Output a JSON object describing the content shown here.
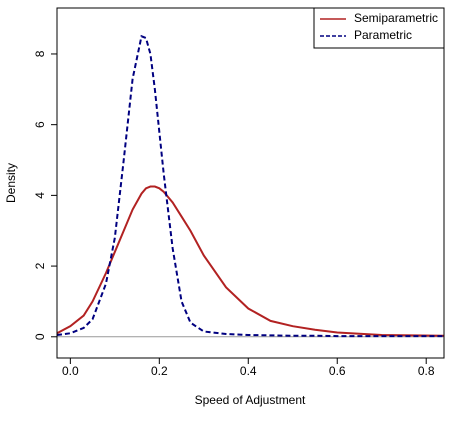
{
  "chart_data": {
    "type": "line",
    "xlabel": "Speed of Adjustment",
    "ylabel": "Density",
    "x": [
      -0.03,
      0,
      0.03,
      0.05,
      0.08,
      0.1,
      0.12,
      0.14,
      0.16,
      0.17,
      0.18,
      0.19,
      0.2,
      0.21,
      0.23,
      0.25,
      0.27,
      0.3,
      0.35,
      0.4,
      0.45,
      0.5,
      0.55,
      0.6,
      0.7,
      0.84
    ],
    "series": [
      {
        "name": "Semiparametric",
        "color": "#b22222",
        "linestyle": "solid",
        "values": [
          0.1,
          0.3,
          0.6,
          1.0,
          1.8,
          2.4,
          3.0,
          3.6,
          4.05,
          4.2,
          4.25,
          4.25,
          4.2,
          4.1,
          3.8,
          3.4,
          3.0,
          2.3,
          1.4,
          0.8,
          0.45,
          0.3,
          0.2,
          0.12,
          0.05,
          0.03
        ]
      },
      {
        "name": "Parametric",
        "color": "#000080",
        "linestyle": "dashed",
        "values": [
          0.05,
          0.1,
          0.25,
          0.5,
          1.5,
          2.8,
          5.0,
          7.3,
          8.5,
          8.45,
          8.0,
          7.0,
          5.8,
          4.6,
          2.5,
          1.0,
          0.4,
          0.15,
          0.08,
          0.05,
          0.04,
          0.03,
          0.03,
          0.02,
          0.02,
          0.02
        ]
      }
    ],
    "xlim": [
      -0.03,
      0.84
    ],
    "xticks": [
      {
        "value": 0,
        "label": "0.0"
      },
      0.2,
      0.4,
      0.6,
      0.8
    ],
    "ylim": [
      -0.6,
      9.3
    ],
    "yticks": [
      0,
      2,
      4,
      6,
      8
    ],
    "zero_line": true,
    "legend": "topright"
  }
}
